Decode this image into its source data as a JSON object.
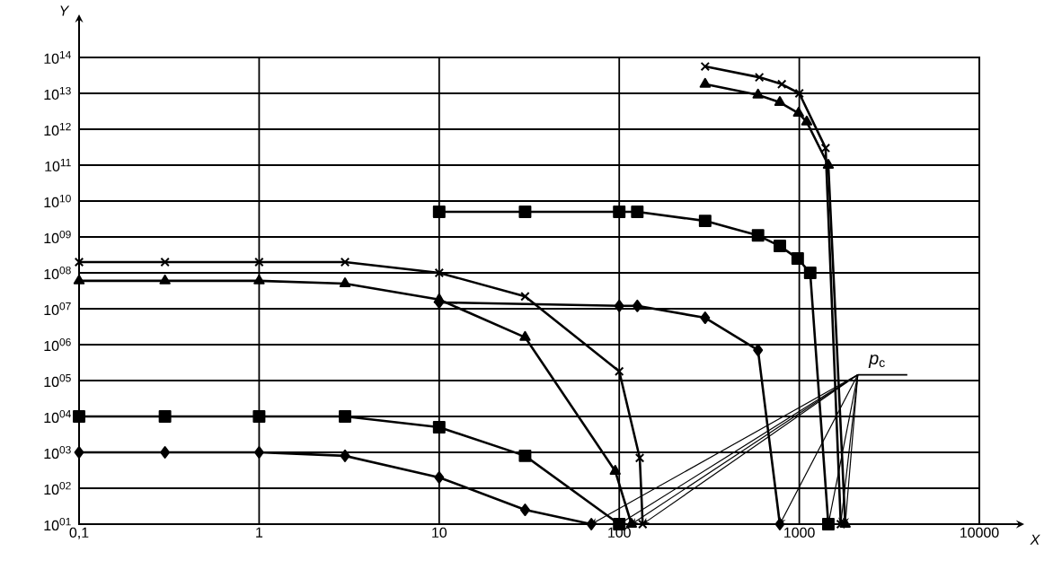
{
  "chart_data": {
    "type": "line",
    "xlabel": "X",
    "ylabel": "Y",
    "log": "xy",
    "grid": true,
    "line_style": "solid",
    "xlim": [
      0.1,
      10000
    ],
    "ylim": [
      10,
      100000000000000
    ],
    "xticks": [
      {
        "value": 0.1,
        "label": "0,1"
      },
      1,
      10,
      100,
      1000,
      10000
    ],
    "yticks": [
      {
        "value": 10,
        "label": "10$^{01}$"
      },
      {
        "value": 100,
        "label": "10$^{02}$"
      },
      {
        "value": 1000,
        "label": "10$^{03}$"
      },
      {
        "value": 10000,
        "label": "10$^{04}$"
      },
      {
        "value": 100000,
        "label": "10$^{05}$"
      },
      {
        "value": 1000000,
        "label": "10$^{06}$"
      },
      {
        "value": 10000000,
        "label": "10$^{07}$"
      },
      {
        "value": 100000000,
        "label": "10$^{08}$"
      },
      {
        "value": 1000000000,
        "label": "10$^{09}$"
      },
      {
        "value": 10000000000,
        "label": "10$^{10}$"
      },
      {
        "value": 100000000000,
        "label": "10$^{11}$"
      },
      {
        "value": 1000000000000,
        "label": "10$^{12}$"
      },
      {
        "value": 10000000000000,
        "label": "10$^{13}$"
      },
      {
        "value": 100000000000000,
        "label": "10$^{14}$"
      }
    ],
    "series": [
      {
        "color": "#000000",
        "marker": "diamond",
        "x": [
          0.1,
          0.3,
          1,
          3,
          10,
          30,
          70
        ],
        "values": [
          1000,
          1000,
          1000,
          800,
          200,
          25,
          10
        ]
      },
      {
        "color": "#000000",
        "marker": "square",
        "x": [
          0.1,
          0.3,
          1,
          3,
          10,
          30,
          100
        ],
        "values": [
          10000,
          10000,
          10000,
          10000,
          5000,
          800,
          10
        ]
      },
      {
        "color": "#000000",
        "marker": "triangle",
        "x": [
          0.1,
          0.3,
          1,
          3,
          10,
          30,
          95,
          117
        ],
        "values": [
          60000000,
          60000000,
          60000000,
          50000000,
          18000000,
          1600000,
          300,
          10
        ]
      },
      {
        "color": "#000000",
        "marker": "cross",
        "x": [
          0.1,
          0.3,
          1,
          3,
          10,
          30,
          100,
          130,
          135
        ],
        "values": [
          200000000,
          200000000,
          200000000,
          200000000,
          100000000,
          22000000,
          180000,
          700,
          10
        ]
      },
      {
        "color": "#000000",
        "marker": "diamond",
        "x": [
          10,
          100,
          126,
          300,
          590,
          780
        ],
        "values": [
          15000000,
          12000000,
          12000000,
          5600000,
          700000,
          10
        ]
      },
      {
        "color": "#000000",
        "marker": "square",
        "x": [
          10,
          30,
          100,
          126,
          300,
          590,
          780,
          980,
          1150,
          1450
        ],
        "values": [
          5000000000,
          5000000000,
          5000000000,
          5000000000,
          2800000000,
          1100000000,
          560000000,
          250000000,
          100000000,
          10
        ]
      },
      {
        "color": "#000000",
        "marker": "triangle",
        "x": [
          300,
          590,
          780,
          990,
          1100,
          1450,
          1800
        ],
        "values": [
          18000000000000,
          9000000000000,
          5600000000000,
          2800000000000,
          1600000000000,
          100000000000,
          10
        ]
      },
      {
        "color": "#000000",
        "marker": "cross",
        "x": [
          300,
          600,
          800,
          1000,
          1400,
          1700
        ],
        "values": [
          56000000000000,
          28000000000000,
          18000000000000,
          10000000000000,
          300000000000,
          10
        ]
      }
    ],
    "annotations": [
      {
        "text": "*p*$_{c}$",
        "x": 70,
        "y": 10
      }
    ]
  }
}
